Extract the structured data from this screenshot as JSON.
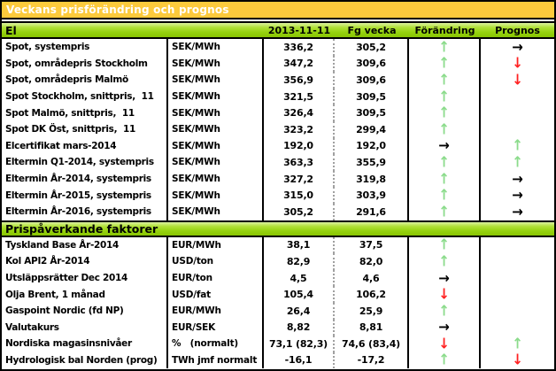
{
  "title_bar": {
    "title": "Veckans prisförändring och prognos"
  },
  "column_headers": {
    "current": "2013-11-11",
    "previous": "Fg vecka",
    "change": "Förändring",
    "forecast": "Prognos"
  },
  "arrows": {
    "glyphs": {
      "up-green": "↑",
      "down-red": "↓",
      "right-black": "→"
    },
    "colors": {
      "up-green": "#8BDB8B",
      "down-red": "#FF2020",
      "right-black": "#000000"
    }
  },
  "colors": {
    "title_bg": "#FCCA3C",
    "section_green": "#8FCE0A"
  },
  "sections": [
    {
      "heading": "El",
      "rows": [
        {
          "label": "Spot, systempris",
          "unit": "SEK/MWh",
          "current": "336,2",
          "previous": "305,2",
          "change": "up-green",
          "forecast": "right-black"
        },
        {
          "label": "Spot, områdepris Stockholm",
          "unit": "SEK/MWh",
          "current": "347,2",
          "previous": "309,6",
          "change": "up-green",
          "forecast": "down-red"
        },
        {
          "label": "Spot, områdepris Malmö",
          "unit": "SEK/MWh",
          "current": "356,9",
          "previous": "309,6",
          "change": "up-green",
          "forecast": "down-red"
        },
        {
          "label": "Spot Stockholm, snittpris,  11",
          "unit": "SEK/MWh",
          "current": "321,5",
          "previous": "309,5",
          "change": "up-green",
          "forecast": ""
        },
        {
          "label": "Spot Malmö, snittpris,  11",
          "unit": "SEK/MWh",
          "current": "326,4",
          "previous": "309,5",
          "change": "up-green",
          "forecast": ""
        },
        {
          "label": "Spot DK Öst, snittpris,  11",
          "unit": "SEK/MWh",
          "current": "323,2",
          "previous": "299,4",
          "change": "up-green",
          "forecast": ""
        },
        {
          "label": "Elcertifikat mars-2014",
          "unit": "SEK/MWh",
          "current": "192,0",
          "previous": "192,0",
          "change": "right-black",
          "forecast": "up-green"
        },
        {
          "label": "Eltermin Q1-2014, systempris",
          "unit": "SEK/MWh",
          "current": "363,3",
          "previous": "355,9",
          "change": "up-green",
          "forecast": "up-green"
        },
        {
          "label": "Eltermin År-2014, systempris",
          "unit": "SEK/MWh",
          "current": "327,2",
          "previous": "319,8",
          "change": "up-green",
          "forecast": "right-black"
        },
        {
          "label": "Eltermin År-2015, systempris",
          "unit": "SEK/MWh",
          "current": "315,0",
          "previous": "303,9",
          "change": "up-green",
          "forecast": "right-black"
        },
        {
          "label": "Eltermin År-2016, systempris",
          "unit": "SEK/MWh",
          "current": "305,2",
          "previous": "291,6",
          "change": "up-green",
          "forecast": "right-black"
        }
      ]
    },
    {
      "heading": "Prispåverkande faktorer",
      "rows": [
        {
          "label": "Tyskland Base År-2014",
          "unit": "EUR/MWh",
          "current": "38,1",
          "previous": "37,5",
          "change": "up-green",
          "forecast": ""
        },
        {
          "label": "Kol API2 År-2014",
          "unit": "USD/ton",
          "current": "82,9",
          "previous": "82,0",
          "change": "up-green",
          "forecast": ""
        },
        {
          "label": "Utsläppsrätter Dec 2014",
          "unit": "EUR/ton",
          "current": "4,5",
          "previous": "4,6",
          "change": "right-black",
          "forecast": ""
        },
        {
          "label": "Olja Brent, 1 månad",
          "unit": "USD/fat",
          "current": "105,4",
          "previous": "106,2",
          "change": "down-red",
          "forecast": ""
        },
        {
          "label": "Gaspoint Nordic (fd NP)",
          "unit": "EUR/MWh",
          "current": "26,4",
          "previous": "25,9",
          "change": "up-green",
          "forecast": ""
        },
        {
          "label": "Valutakurs",
          "unit": "EUR/SEK",
          "current": "8,82",
          "previous": "8,81",
          "change": "right-black",
          "forecast": ""
        },
        {
          "label": "Nordiska magasinsnivåer",
          "unit": "%   (normalt)",
          "current": "73,1 (82,3)",
          "previous": "74,6 (83,4)",
          "change": "down-red",
          "forecast": "up-green"
        },
        {
          "label": "Hydrologisk bal Norden (prog)",
          "unit": "TWh jmf normalt",
          "current": "-16,1",
          "previous": "-17,2",
          "change": "up-green",
          "forecast": "down-red"
        }
      ]
    }
  ]
}
